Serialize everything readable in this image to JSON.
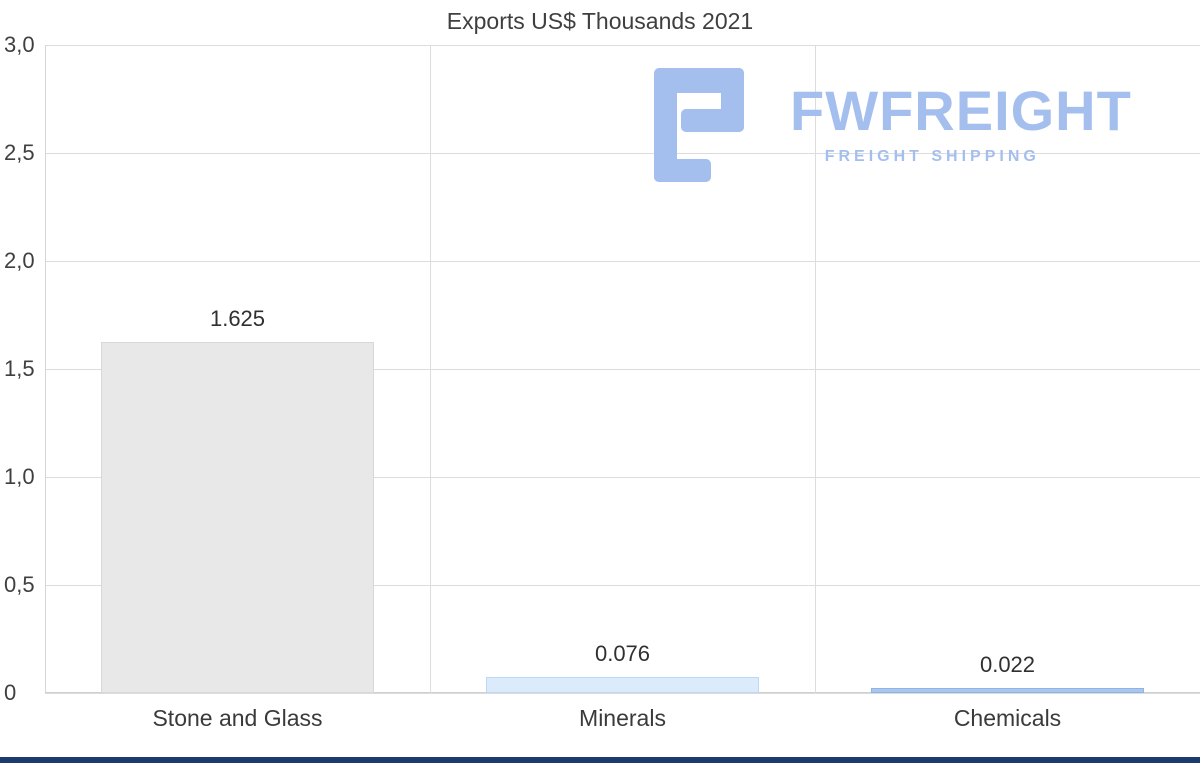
{
  "chart_data": {
    "type": "bar",
    "title": "Exports US$ Thousands 2021",
    "categories": [
      "Stone and Glass",
      "Minerals",
      "Chemicals"
    ],
    "values": [
      1.625,
      0.076,
      0.022
    ],
    "value_labels": [
      "1.625",
      "0.076",
      "0.022"
    ],
    "bar_fills": [
      "#e8e8e8",
      "#dcebfc",
      "#a9c6ee"
    ],
    "bar_borders": [
      "#d8d8d8",
      "#bdd8f5",
      "#8fb3e3"
    ],
    "ylim": [
      0,
      3.0
    ],
    "ytick_step": 0.5,
    "ytick_labels": [
      "0",
      "0,5",
      "1,0",
      "1,5",
      "2,0",
      "2,5",
      "3,0"
    ],
    "grid": true,
    "legend": "none",
    "xlabel": "",
    "ylabel": ""
  },
  "logo": {
    "name": "FWFREIGHT",
    "tagline": "FREIGHT SHIPPING",
    "color": "#a4bfee"
  },
  "colors": {
    "background": "#ffffff",
    "gridline": "#dcdcdc",
    "text": "#3f3f3f",
    "footer_bar": "#1c3a6e"
  }
}
